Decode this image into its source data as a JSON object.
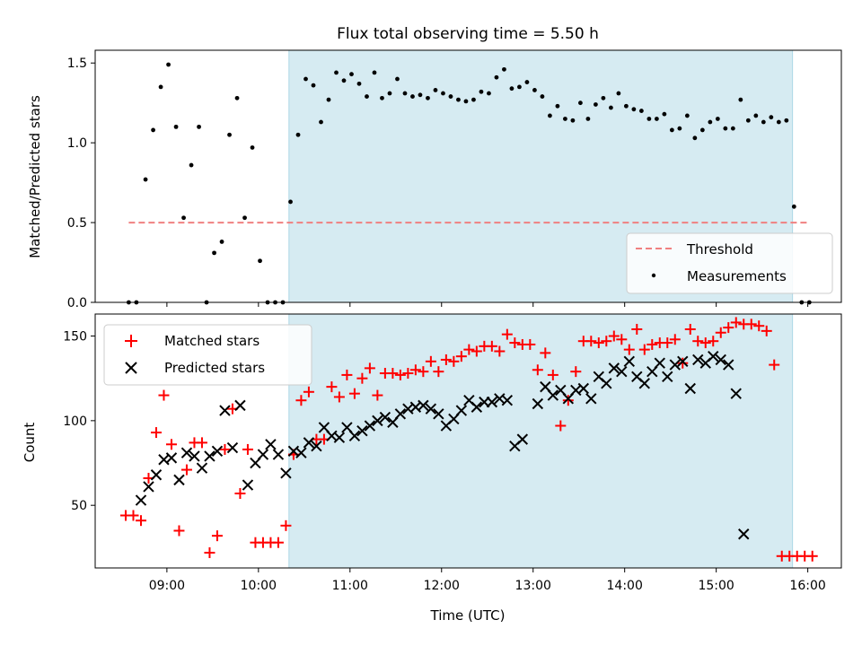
{
  "chart_data": [
    {
      "type": "scatter",
      "title": "Flux total observing time = 5.50 h",
      "xlabel": "",
      "ylabel": "Matched/Predicted stars",
      "ylim": [
        0,
        1.58
      ],
      "yticks": [
        "0.0",
        "0.5",
        "1.0",
        "1.5"
      ],
      "highlight_span": [
        "10:20",
        "15:50"
      ],
      "highlight_color": "#add8e6",
      "legend_position": "bottom-right",
      "threshold": {
        "name": "Threshold",
        "value": 0.5,
        "x_range": [
          "08:35",
          "16:00"
        ],
        "color": "#f08080"
      },
      "series": [
        {
          "name": "Measurements",
          "color": "#000000",
          "marker": "dot",
          "x": [
            "08:35",
            "08:40",
            "08:46",
            "08:51",
            "08:56",
            "09:01",
            "09:06",
            "09:11",
            "09:16",
            "09:21",
            "09:26",
            "09:31",
            "09:36",
            "09:41",
            "09:46",
            "09:51",
            "09:56",
            "10:01",
            "10:06",
            "10:11",
            "10:16",
            "10:21",
            "10:26",
            "10:31",
            "10:36",
            "10:41",
            "10:46",
            "10:51",
            "10:56",
            "11:01",
            "11:06",
            "11:11",
            "11:16",
            "11:21",
            "11:26",
            "11:31",
            "11:36",
            "11:41",
            "11:46",
            "11:51",
            "11:56",
            "12:01",
            "12:06",
            "12:11",
            "12:16",
            "12:21",
            "12:26",
            "12:31",
            "12:36",
            "12:41",
            "12:46",
            "12:51",
            "12:56",
            "13:01",
            "13:06",
            "13:11",
            "13:16",
            "13:21",
            "13:26",
            "13:31",
            "13:36",
            "13:41",
            "13:46",
            "13:51",
            "13:56",
            "14:01",
            "14:06",
            "14:11",
            "14:16",
            "14:21",
            "14:26",
            "14:31",
            "14:36",
            "14:41",
            "14:46",
            "14:51",
            "14:56",
            "15:01",
            "15:06",
            "15:11",
            "15:16",
            "15:21",
            "15:26",
            "15:31",
            "15:36",
            "15:41",
            "15:46",
            "15:51",
            "15:56",
            "16:01"
          ],
          "y": [
            0.0,
            0.0,
            0.77,
            1.08,
            1.35,
            1.49,
            1.1,
            0.53,
            0.86,
            1.1,
            0.0,
            0.31,
            0.38,
            1.05,
            1.28,
            0.53,
            0.97,
            0.26,
            0.0,
            0.0,
            0.0,
            0.63,
            1.05,
            1.4,
            1.36,
            1.13,
            1.27,
            1.44,
            1.39,
            1.43,
            1.37,
            1.29,
            1.44,
            1.28,
            1.31,
            1.4,
            1.31,
            1.29,
            1.3,
            1.28,
            1.33,
            1.31,
            1.29,
            1.27,
            1.26,
            1.27,
            1.32,
            1.31,
            1.41,
            1.46,
            1.34,
            1.35,
            1.38,
            1.33,
            1.29,
            1.17,
            1.23,
            1.15,
            1.14,
            1.25,
            1.15,
            1.24,
            1.28,
            1.22,
            1.31,
            1.23,
            1.21,
            1.2,
            1.15,
            1.15,
            1.18,
            1.08,
            1.09,
            1.17,
            1.03,
            1.08,
            1.13,
            1.15,
            1.09,
            1.09,
            1.27,
            1.14,
            1.17,
            1.13,
            1.16,
            1.13,
            1.14,
            0.6,
            0.0,
            0.0
          ]
        }
      ]
    },
    {
      "type": "scatter",
      "title": "",
      "xlabel": "Time (UTC)",
      "ylabel": "Count",
      "ylim": [
        13,
        163
      ],
      "yticks": [
        "50",
        "100",
        "150"
      ],
      "xlim": [
        "08:13",
        "16:22"
      ],
      "xticks": [
        "09:00",
        "10:00",
        "11:00",
        "12:00",
        "13:00",
        "14:00",
        "15:00",
        "16:00"
      ],
      "highlight_span": [
        "10:20",
        "15:50"
      ],
      "highlight_color": "#add8e6",
      "legend_position": "top-left",
      "series": [
        {
          "name": "Matched stars",
          "color": "#ff0000",
          "marker": "plus",
          "x": [
            "08:33",
            "08:38",
            "08:43",
            "08:48",
            "08:53",
            "08:58",
            "09:03",
            "09:08",
            "09:13",
            "09:18",
            "09:23",
            "09:28",
            "09:33",
            "09:38",
            "09:43",
            "09:48",
            "09:53",
            "09:58",
            "10:03",
            "10:08",
            "10:13",
            "10:18",
            "10:23",
            "10:28",
            "10:33",
            "10:38",
            "10:43",
            "10:48",
            "10:53",
            "10:58",
            "11:03",
            "11:08",
            "11:13",
            "11:18",
            "11:23",
            "11:28",
            "11:33",
            "11:38",
            "11:43",
            "11:48",
            "11:53",
            "11:58",
            "12:03",
            "12:08",
            "12:13",
            "12:18",
            "12:23",
            "12:28",
            "12:33",
            "12:38",
            "12:43",
            "12:48",
            "12:53",
            "12:58",
            "13:03",
            "13:08",
            "13:13",
            "13:18",
            "13:23",
            "13:28",
            "13:33",
            "13:38",
            "13:43",
            "13:48",
            "13:53",
            "13:58",
            "14:03",
            "14:08",
            "14:13",
            "14:18",
            "14:23",
            "14:28",
            "14:33",
            "14:38",
            "14:43",
            "14:48",
            "14:53",
            "14:58",
            "15:03",
            "15:08",
            "15:13",
            "15:18",
            "15:23",
            "15:28",
            "15:33",
            "15:38",
            "15:43",
            "15:48",
            "15:53",
            "15:58",
            "16:03"
          ],
          "y": [
            44,
            44,
            41,
            66,
            93,
            115,
            86,
            35,
            71,
            87,
            87,
            22,
            32,
            83,
            107,
            57,
            83,
            28,
            28,
            28,
            28,
            38,
            80,
            112,
            117,
            89,
            89,
            120,
            114,
            127,
            116,
            125,
            131,
            115,
            128,
            128,
            127,
            128,
            130,
            129,
            135,
            129,
            136,
            135,
            138,
            142,
            141,
            144,
            144,
            141,
            151,
            146,
            145,
            145,
            130,
            140,
            127,
            97,
            112,
            129,
            147,
            147,
            146,
            147,
            150,
            148,
            142,
            154,
            142,
            145,
            146,
            146,
            148,
            134,
            154,
            147,
            146,
            147,
            152,
            155,
            158,
            157,
            157,
            156,
            153,
            133,
            20,
            20,
            20,
            20,
            20
          ]
        },
        {
          "name": "Predicted stars",
          "color": "#000000",
          "marker": "x",
          "x": [
            "08:33",
            "08:38",
            "08:43",
            "08:48",
            "08:53",
            "08:58",
            "09:03",
            "09:08",
            "09:13",
            "09:18",
            "09:23",
            "09:28",
            "09:33",
            "09:38",
            "09:43",
            "09:48",
            "09:53",
            "09:58",
            "10:03",
            "10:08",
            "10:13",
            "10:18",
            "10:23",
            "10:28",
            "10:33",
            "10:38",
            "10:43",
            "10:48",
            "10:53",
            "10:58",
            "11:03",
            "11:08",
            "11:13",
            "11:18",
            "11:23",
            "11:28",
            "11:33",
            "11:38",
            "11:43",
            "11:48",
            "11:53",
            "11:58",
            "12:03",
            "12:08",
            "12:13",
            "12:18",
            "12:23",
            "12:28",
            "12:33",
            "12:38",
            "12:43",
            "12:48",
            "12:53",
            "12:58",
            "13:03",
            "13:08",
            "13:13",
            "13:18",
            "13:23",
            "13:28",
            "13:33",
            "13:38",
            "13:43",
            "13:48",
            "13:53",
            "13:58",
            "14:03",
            "14:08",
            "14:13",
            "14:18",
            "14:23",
            "14:28",
            "14:33",
            "14:38",
            "14:43",
            "14:48",
            "14:53",
            "14:58",
            "15:03",
            "15:08",
            "15:13",
            "15:18",
            "15:23",
            "15:28",
            "15:33",
            "15:38",
            "15:43",
            "15:48",
            "15:53",
            "15:58",
            "16:03"
          ],
          "y": [
            null,
            null,
            53,
            61,
            68,
            77,
            78,
            65,
            81,
            79,
            72,
            79,
            82,
            106,
            84,
            109,
            62,
            75,
            80,
            86,
            80,
            69,
            82,
            81,
            87,
            85,
            96,
            91,
            90,
            96,
            91,
            94,
            97,
            100,
            102,
            99,
            104,
            107,
            108,
            109,
            107,
            104,
            97,
            101,
            106,
            112,
            108,
            111,
            111,
            113,
            112,
            85,
            89,
            null,
            110,
            120,
            115,
            118,
            113,
            118,
            119,
            113,
            126,
            122,
            131,
            129,
            135,
            126,
            122,
            129,
            134,
            126,
            133,
            135,
            119,
            136,
            134,
            138,
            136,
            133,
            116,
            33,
            null,
            null,
            null,
            null,
            null,
            null,
            null,
            null,
            null
          ]
        }
      ]
    }
  ]
}
